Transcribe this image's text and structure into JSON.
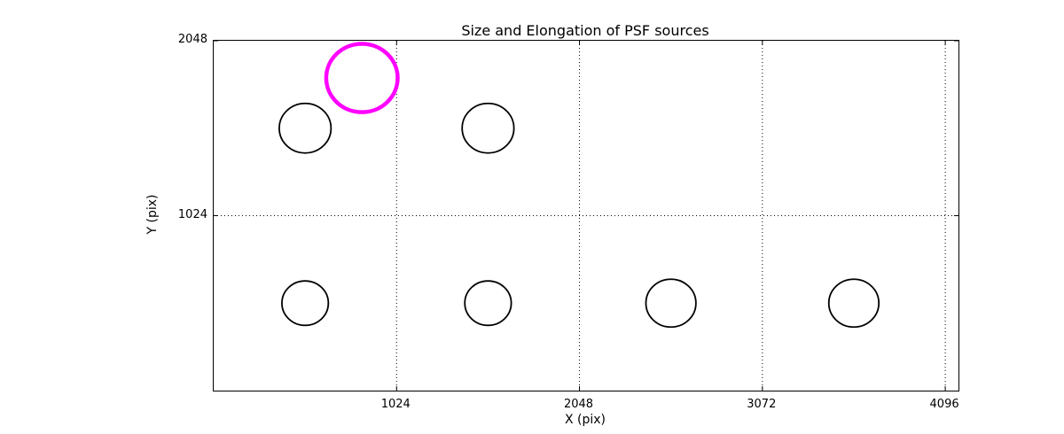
{
  "chart_data": {
    "type": "scatter",
    "title": "Size and Elongation of PSF sources",
    "xlabel": "X (pix)",
    "ylabel": "Y (pix)",
    "xlim": [
      0,
      4170
    ],
    "ylim": [
      0,
      2048
    ],
    "xticks": [
      1024,
      2048,
      3072,
      4096
    ],
    "yticks": [
      1024,
      2048
    ],
    "grid": "dotted",
    "gridlines_x": [
      1024,
      2048,
      3072,
      4096
    ],
    "gridlines_y": [
      1024
    ],
    "legend_position": "none",
    "marker_style": "open-circle",
    "points": [
      {
        "x": 830,
        "y": 1830,
        "r": 200,
        "color": "#FF00FF",
        "stroke_width": 4.5,
        "role": "highlighted-psf-source"
      },
      {
        "x": 512,
        "y": 1536,
        "r": 145,
        "color": "#000000",
        "stroke_width": 1.8,
        "role": "psf-source"
      },
      {
        "x": 1536,
        "y": 1536,
        "r": 145,
        "color": "#000000",
        "stroke_width": 1.8,
        "role": "psf-source"
      },
      {
        "x": 512,
        "y": 512,
        "r": 130,
        "color": "#000000",
        "stroke_width": 1.8,
        "role": "psf-source"
      },
      {
        "x": 1536,
        "y": 512,
        "r": 130,
        "color": "#000000",
        "stroke_width": 1.8,
        "role": "psf-source"
      },
      {
        "x": 2560,
        "y": 512,
        "r": 140,
        "color": "#000000",
        "stroke_width": 1.8,
        "role": "psf-source"
      },
      {
        "x": 3584,
        "y": 512,
        "r": 140,
        "color": "#000000",
        "stroke_width": 1.8,
        "role": "psf-source"
      }
    ],
    "colors": {
      "highlight": "#FF00FF",
      "default": "#000000",
      "axes": "#000000",
      "grid": "#000000",
      "background": "#FFFFFF"
    }
  }
}
